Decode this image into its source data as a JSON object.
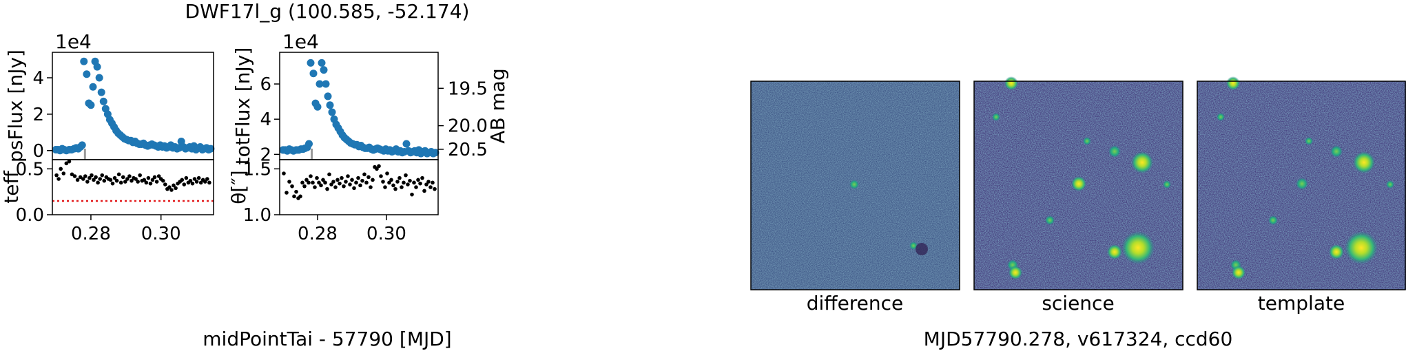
{
  "figure_title": "DWF17l_g (100.585, -52.174)",
  "footer_caption": "MJD57790.278, v617324, ccd60",
  "colors": {
    "series": "#1f77b4",
    "points": "#000000",
    "threshold": "#e41a1c",
    "marker": "#999999"
  },
  "chart_data": [
    {
      "type": "scatter",
      "panel": "psFlux",
      "xlabel": "midPointTai - 57790 [MJD]",
      "ylabel": "psFlux [nJy]",
      "y_scale_label": "1e4",
      "xlim": [
        0.269,
        0.315
      ],
      "ylim": [
        -0.5,
        5.4
      ],
      "x_ticks": [
        0.28,
        0.3
      ],
      "x_tick_labels": [
        "0.28",
        "0.30"
      ],
      "y_ticks": [
        0,
        2,
        4
      ],
      "y_tick_labels": [
        "0",
        "2",
        "4"
      ],
      "marker_x": 0.2783,
      "series": [
        {
          "x": [
            0.27,
            0.2706,
            0.2712,
            0.2718,
            0.2724,
            0.273,
            0.2738,
            0.2745,
            0.2752,
            0.2758,
            0.2764,
            0.277,
            0.2775,
            0.278,
            0.2788,
            0.2794,
            0.28,
            0.2806,
            0.2812,
            0.2818,
            0.2824,
            0.283,
            0.2836,
            0.2842,
            0.2848,
            0.2854,
            0.286,
            0.2866,
            0.2872,
            0.2878,
            0.2884,
            0.289,
            0.2896,
            0.2902,
            0.2908,
            0.2914,
            0.292,
            0.2926,
            0.2932,
            0.2938,
            0.2944,
            0.295,
            0.2956,
            0.2962,
            0.2968,
            0.2974,
            0.298,
            0.2986,
            0.2992,
            0.2998,
            0.3004,
            0.301,
            0.3016,
            0.3022,
            0.3028,
            0.3034,
            0.304,
            0.3046,
            0.3052,
            0.3058,
            0.3064,
            0.307,
            0.3076,
            0.3082,
            0.3088,
            0.3094,
            0.31,
            0.3106,
            0.3112,
            0.3118,
            0.3124,
            0.313,
            0.3136,
            0.3142
          ],
          "y": [
            0.05,
            0.05,
            0.0,
            0.1,
            0.05,
            0.0,
            0.05,
            0.05,
            0.1,
            0.15,
            0.1,
            0.2,
            0.3,
            4.9,
            4.2,
            2.6,
            2.5,
            3.5,
            4.9,
            4.6,
            4.0,
            3.2,
            2.7,
            2.3,
            2.0,
            1.7,
            1.5,
            1.3,
            1.1,
            0.95,
            0.85,
            0.75,
            0.65,
            0.6,
            0.55,
            0.55,
            0.45,
            0.5,
            0.4,
            0.35,
            0.35,
            0.4,
            0.3,
            0.25,
            0.3,
            0.35,
            0.3,
            0.25,
            0.2,
            0.3,
            0.2,
            0.25,
            0.15,
            0.2,
            0.3,
            0.15,
            0.2,
            0.1,
            0.15,
            0.5,
            0.2,
            0.1,
            0.15,
            0.2,
            0.1,
            0.25,
            0.05,
            0.15,
            0.2,
            0.05,
            0.1,
            0.15,
            0.05,
            0.1
          ]
        }
      ]
    },
    {
      "type": "scatter",
      "panel": "teff",
      "ylabel": "teff",
      "ylim": [
        0.0,
        0.6
      ],
      "y_ticks": [
        0.0,
        0.5
      ],
      "y_tick_labels": [
        "0.0",
        "0.5"
      ],
      "threshold": 0.15,
      "series": [
        {
          "x": [
            0.2702,
            0.2708,
            0.2714,
            0.2722,
            0.273,
            0.2738,
            0.2746,
            0.2754,
            0.2762,
            0.277,
            0.2778,
            0.2784,
            0.279,
            0.2796,
            0.2802,
            0.2808,
            0.2814,
            0.282,
            0.2826,
            0.2832,
            0.2838,
            0.2844,
            0.285,
            0.2856,
            0.2862,
            0.2868,
            0.2874,
            0.288,
            0.2886,
            0.2892,
            0.2898,
            0.2904,
            0.291,
            0.2916,
            0.2922,
            0.2928,
            0.2934,
            0.294,
            0.2946,
            0.2952,
            0.2958,
            0.2964,
            0.297,
            0.2976,
            0.2982,
            0.2988,
            0.2994,
            0.3,
            0.3006,
            0.3012,
            0.3018,
            0.3024,
            0.303,
            0.3036,
            0.3042,
            0.3048,
            0.3054,
            0.306,
            0.3066,
            0.3072,
            0.3078,
            0.3084,
            0.309,
            0.3096,
            0.3102,
            0.3108,
            0.3114,
            0.312,
            0.3126,
            0.3132,
            0.3138
          ],
          "y": [
            0.43,
            0.39,
            0.5,
            0.45,
            0.56,
            0.58,
            0.44,
            0.42,
            0.38,
            0.41,
            0.39,
            0.42,
            0.36,
            0.4,
            0.43,
            0.38,
            0.41,
            0.35,
            0.39,
            0.43,
            0.37,
            0.41,
            0.39,
            0.38,
            0.34,
            0.4,
            0.37,
            0.44,
            0.35,
            0.41,
            0.36,
            0.39,
            0.42,
            0.37,
            0.4,
            0.39,
            0.36,
            0.43,
            0.37,
            0.38,
            0.35,
            0.4,
            0.34,
            0.38,
            0.41,
            0.36,
            0.42,
            0.39,
            0.37,
            0.33,
            0.28,
            0.3,
            0.27,
            0.32,
            0.29,
            0.34,
            0.36,
            0.38,
            0.33,
            0.4,
            0.35,
            0.37,
            0.34,
            0.39,
            0.36,
            0.4,
            0.35,
            0.38,
            0.36,
            0.39,
            0.35
          ]
        }
      ]
    },
    {
      "type": "scatter",
      "panel": "totFlux",
      "ylabel": "totFlux [nJy]",
      "y_scale_label": "1e4",
      "ylim": [
        1.7,
        7.8
      ],
      "y_ticks": [
        2,
        4,
        6
      ],
      "y_tick_labels": [
        "2",
        "4",
        "6"
      ],
      "secondary_ylabel": "AB mag",
      "secondary_ticks": [
        19.5,
        20.0,
        20.5
      ],
      "secondary_tick_labels": [
        "19.5",
        "20.0",
        "20.5"
      ],
      "marker_x": 0.2783,
      "series": [
        {
          "x": [
            0.27,
            0.2706,
            0.2712,
            0.2718,
            0.2724,
            0.273,
            0.2738,
            0.2745,
            0.2752,
            0.2758,
            0.2764,
            0.277,
            0.2775,
            0.278,
            0.2788,
            0.2794,
            0.28,
            0.2806,
            0.2812,
            0.2818,
            0.2824,
            0.283,
            0.2836,
            0.2842,
            0.2848,
            0.2854,
            0.286,
            0.2866,
            0.2872,
            0.2878,
            0.2884,
            0.289,
            0.2896,
            0.2902,
            0.2908,
            0.2914,
            0.292,
            0.2926,
            0.2932,
            0.2938,
            0.2944,
            0.295,
            0.2956,
            0.2962,
            0.2968,
            0.2974,
            0.298,
            0.2986,
            0.2992,
            0.2998,
            0.3004,
            0.301,
            0.3016,
            0.3022,
            0.3028,
            0.3034,
            0.304,
            0.3046,
            0.3052,
            0.3058,
            0.3064,
            0.307,
            0.3076,
            0.3082,
            0.3088,
            0.3094,
            0.31,
            0.3106,
            0.3112,
            0.3118,
            0.3124,
            0.313,
            0.3136,
            0.3142
          ],
          "y": [
            2.25,
            2.25,
            2.2,
            2.3,
            2.25,
            2.2,
            2.25,
            2.25,
            2.3,
            2.3,
            2.35,
            2.4,
            2.6,
            7.2,
            6.6,
            4.9,
            4.7,
            6.0,
            7.2,
            6.8,
            6.0,
            5.3,
            4.8,
            4.4,
            4.0,
            3.7,
            3.5,
            3.3,
            3.1,
            2.95,
            2.85,
            2.75,
            2.65,
            2.6,
            2.55,
            2.55,
            2.45,
            2.5,
            2.4,
            2.35,
            2.35,
            2.4,
            2.3,
            2.25,
            2.3,
            2.35,
            2.3,
            2.25,
            2.2,
            2.3,
            2.2,
            2.25,
            2.15,
            2.2,
            2.3,
            2.15,
            2.2,
            2.1,
            2.15,
            2.6,
            2.2,
            2.1,
            2.15,
            2.2,
            2.1,
            2.25,
            2.05,
            2.15,
            2.2,
            2.05,
            2.1,
            2.15,
            2.05,
            2.1
          ]
        }
      ]
    },
    {
      "type": "scatter",
      "panel": "seeing",
      "ylabel": "θ[″]",
      "ylim": [
        1.0,
        1.6
      ],
      "y_ticks": [
        1.0,
        1.5
      ],
      "y_tick_labels": [
        "1.0",
        "1.5"
      ],
      "series": [
        {
          "x": [
            0.2702,
            0.271,
            0.2718,
            0.2726,
            0.2732,
            0.2738,
            0.2744,
            0.275,
            0.2756,
            0.2762,
            0.2768,
            0.2774,
            0.278,
            0.2786,
            0.2792,
            0.2798,
            0.2804,
            0.281,
            0.2816,
            0.2822,
            0.2828,
            0.2834,
            0.284,
            0.2846,
            0.2852,
            0.2858,
            0.2864,
            0.287,
            0.2876,
            0.2882,
            0.2888,
            0.2894,
            0.29,
            0.2906,
            0.2912,
            0.2918,
            0.2924,
            0.293,
            0.2936,
            0.2942,
            0.2948,
            0.2954,
            0.296,
            0.2966,
            0.2972,
            0.2978,
            0.2984,
            0.299,
            0.2996,
            0.3002,
            0.3008,
            0.3014,
            0.302,
            0.3026,
            0.3032,
            0.3038,
            0.3044,
            0.305,
            0.3056,
            0.3062,
            0.3068,
            0.3074,
            0.308,
            0.3086,
            0.3092,
            0.3098,
            0.3104,
            0.311,
            0.3116,
            0.3122,
            0.3128,
            0.3134,
            0.314
          ],
          "y": [
            1.45,
            1.24,
            1.36,
            1.31,
            1.2,
            1.25,
            1.18,
            1.2,
            1.35,
            1.31,
            1.38,
            1.35,
            1.42,
            1.35,
            1.3,
            1.4,
            1.35,
            1.32,
            1.38,
            1.35,
            1.28,
            1.44,
            1.33,
            1.36,
            1.3,
            1.38,
            1.34,
            1.4,
            1.31,
            1.36,
            1.42,
            1.33,
            1.38,
            1.29,
            1.35,
            1.4,
            1.32,
            1.37,
            1.44,
            1.35,
            1.41,
            1.3,
            1.38,
            1.52,
            1.5,
            1.53,
            1.42,
            1.36,
            1.3,
            1.45,
            1.35,
            1.38,
            1.32,
            1.28,
            1.36,
            1.4,
            1.3,
            1.35,
            1.43,
            1.33,
            1.37,
            1.22,
            1.35,
            1.3,
            1.38,
            1.34,
            1.4,
            1.26,
            1.33,
            1.36,
            1.3,
            1.35,
            1.28
          ]
        }
      ]
    }
  ],
  "stamps": {
    "difference": {
      "label": "difference"
    },
    "science": {
      "label": "science"
    },
    "template": {
      "label": "template"
    }
  }
}
